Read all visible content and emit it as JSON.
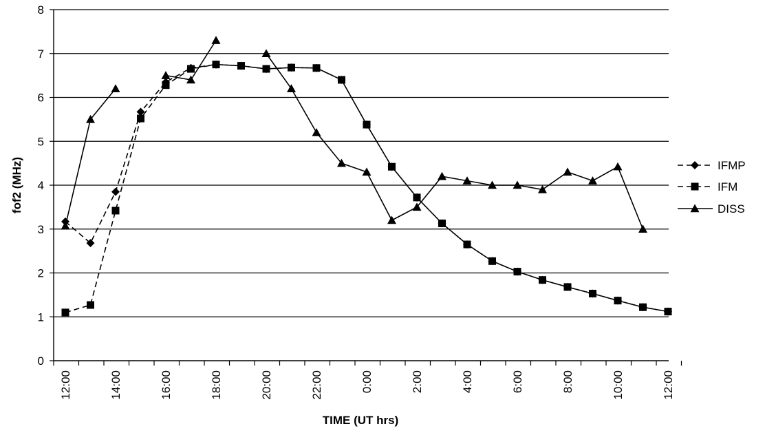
{
  "chart_data": {
    "type": "line",
    "title": "",
    "xlabel": "TIME (UT hrs)",
    "ylabel": "fof2 (MHz)",
    "ylim": [
      0,
      8
    ],
    "y_ticks": [
      "0",
      "1",
      "2",
      "3",
      "4",
      "5",
      "6",
      "7",
      "8"
    ],
    "grid": true,
    "legend_position": "right",
    "categories": [
      "12:00",
      "13:00",
      "14:00",
      "15:00",
      "16:00",
      "17:00",
      "18:00",
      "19:00",
      "20:00",
      "21:00",
      "22:00",
      "23:00",
      "0:00",
      "1:00",
      "2:00",
      "3:00",
      "4:00",
      "5:00",
      "6:00",
      "7:00",
      "8:00",
      "9:00",
      "10:00",
      "11:00",
      "12:00"
    ],
    "x_tick_labels": [
      "12:00",
      "",
      "14:00",
      "",
      "16:00",
      "",
      "18:00",
      "",
      "20:00",
      "",
      "22:00",
      "",
      "0:00",
      "",
      "2:00",
      "",
      "4:00",
      "",
      "6:00",
      "",
      "8:00",
      "",
      "10:00",
      "",
      "12:00"
    ],
    "series": [
      {
        "name": "IFMP",
        "marker": "diamond",
        "line": "dashed",
        "color": "#000000",
        "values": [
          3.17,
          2.68,
          3.85,
          5.67,
          6.35,
          6.67,
          6.75,
          6.72,
          6.65,
          6.68,
          6.67,
          6.4,
          5.38,
          4.42,
          3.72,
          3.13,
          2.65,
          2.27,
          2.03,
          1.84,
          1.68,
          1.53,
          1.37,
          1.22,
          1.12
        ]
      },
      {
        "name": "IFM",
        "marker": "square",
        "line": "dashed",
        "color": "#000000",
        "values": [
          1.1,
          1.27,
          3.42,
          5.52,
          6.28,
          6.65,
          6.75,
          6.72,
          6.65,
          6.68,
          6.67,
          6.4,
          5.38,
          4.42,
          3.72,
          3.13,
          2.65,
          2.27,
          2.03,
          1.84,
          1.68,
          1.53,
          1.37,
          1.22,
          1.12
        ]
      },
      {
        "name": "DISS",
        "marker": "triangle",
        "line": "solid",
        "color": "#000000",
        "values": [
          3.07,
          5.5,
          6.2,
          null,
          6.5,
          6.4,
          7.3,
          null,
          7.0,
          6.2,
          5.2,
          4.5,
          4.3,
          3.2,
          3.5,
          4.2,
          4.1,
          4.0,
          4.0,
          3.9,
          4.3,
          4.1,
          4.42,
          3.0,
          null
        ]
      }
    ]
  }
}
